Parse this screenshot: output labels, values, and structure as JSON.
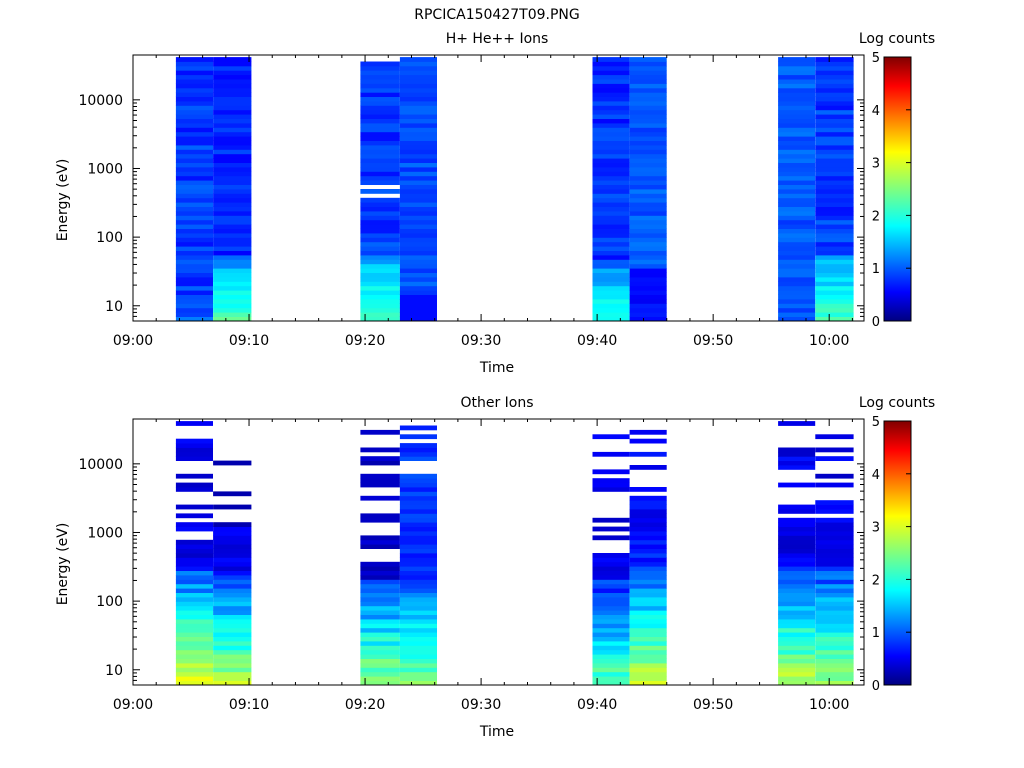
{
  "figure_title": "RPCICA150427T09.PNG",
  "chart_data": [
    {
      "type": "heatmap",
      "title": "H+ He++ Ions",
      "xlabel": "Time",
      "ylabel": "Energy (eV)",
      "colorbar_label": "Log counts",
      "x_ticks": [
        "09:00",
        "09:10",
        "09:20",
        "09:30",
        "09:40",
        "09:50",
        "10:00"
      ],
      "y_ticks": [
        "10",
        "100",
        "1000",
        "10000"
      ],
      "xlim_minutes": [
        0,
        63
      ],
      "ylim_ev": [
        6,
        45000
      ],
      "y_scale": "log",
      "colorbar_range": [
        0,
        5
      ],
      "colorbar_ticks": [
        "0",
        "1",
        "2",
        "3",
        "4",
        "5"
      ],
      "blocks": [
        {
          "start_min": 3.7,
          "end_min": 6.9,
          "profile": "hp_a"
        },
        {
          "start_min": 6.9,
          "end_min": 10.2,
          "profile": "hp_b"
        },
        {
          "start_min": 19.6,
          "end_min": 23.0,
          "profile": "hp_c"
        },
        {
          "start_min": 23.0,
          "end_min": 26.2,
          "profile": "hp_d"
        },
        {
          "start_min": 39.6,
          "end_min": 42.8,
          "profile": "hp_e"
        },
        {
          "start_min": 42.8,
          "end_min": 46.0,
          "profile": "hp_f"
        },
        {
          "start_min": 55.6,
          "end_min": 58.8,
          "profile": "hp_g"
        },
        {
          "start_min": 58.8,
          "end_min": 62.1,
          "profile": "hp_h"
        }
      ]
    },
    {
      "type": "heatmap",
      "title": "Other Ions",
      "xlabel": "Time",
      "ylabel": "Energy (eV)",
      "colorbar_label": "Log counts",
      "x_ticks": [
        "09:00",
        "09:10",
        "09:20",
        "09:30",
        "09:40",
        "09:50",
        "10:00"
      ],
      "y_ticks": [
        "10",
        "100",
        "1000",
        "10000"
      ],
      "xlim_minutes": [
        0,
        63
      ],
      "ylim_ev": [
        6,
        45000
      ],
      "y_scale": "log",
      "colorbar_range": [
        0,
        5
      ],
      "colorbar_ticks": [
        "0",
        "1",
        "2",
        "3",
        "4",
        "5"
      ],
      "blocks": [
        {
          "start_min": 3.7,
          "end_min": 6.9,
          "profile": "o_a"
        },
        {
          "start_min": 6.9,
          "end_min": 10.2,
          "profile": "o_b"
        },
        {
          "start_min": 19.6,
          "end_min": 23.0,
          "profile": "o_c"
        },
        {
          "start_min": 23.0,
          "end_min": 26.2,
          "profile": "o_d"
        },
        {
          "start_min": 39.6,
          "end_min": 42.8,
          "profile": "o_e"
        },
        {
          "start_min": 42.8,
          "end_min": 46.0,
          "profile": "o_f"
        },
        {
          "start_min": 55.6,
          "end_min": 58.8,
          "profile": "o_g"
        },
        {
          "start_min": 58.8,
          "end_min": 62.1,
          "profile": "o_h"
        }
      ]
    }
  ]
}
